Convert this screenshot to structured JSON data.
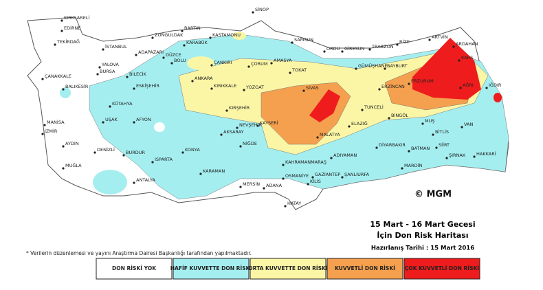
{
  "map": {
    "title_lines": [
      "15 Mart - 16 Mart Gecesi",
      "İçin Don Risk Haritası"
    ],
    "prepared_date": "Hazırlanış Tarihi : 15 Mart 2016",
    "copyright": "© MGM",
    "footnote": "* Verilerin düzenlemesi ve yayını Araştırma Dairesi Başkanlığı tarafından yapılmaktadır.",
    "legend": [
      {
        "label": "DON RİSKİ YOK",
        "color": "#ffffff"
      },
      {
        "label": "HAFİF KUVVETTE DON RİSKİ",
        "color": "#a4eef0"
      },
      {
        "label": "ORTA KUVVETTE DON RİSKİ",
        "color": "#fbf6a6"
      },
      {
        "label": "KUVVETLİ DON RİSKİ",
        "color": "#f4a04e"
      },
      {
        "label": "ÇOK KUVVETLİ DON RİSKİ",
        "color": "#ee1c1c"
      }
    ],
    "cities": [
      "KIRKLARELİ",
      "EDİRNE",
      "TEKİRDAĞ",
      "İSTANBUL",
      "ADAPAZARI",
      "DÜZCE",
      "BOLU",
      "YALOVA",
      "BURSA",
      "BİLECİK",
      "ÇANAKKALE",
      "BALIKESİR",
      "ESKİŞEHİR",
      "KÜTAHYA",
      "UŞAK",
      "AFYON",
      "MANİSA",
      "İZMİR",
      "AYDIN",
      "DENİZLİ",
      "MUĞLA",
      "BURDUR",
      "ISPARTA",
      "ANTALYA",
      "SİNOP",
      "BARTIN",
      "ZONGULDAK",
      "KARABÜK",
      "KASTAMONU",
      "ÇANKIRI",
      "ANKARA",
      "KIRIKKALE",
      "ÇORUM",
      "AMASYA",
      "SAMSUN",
      "TOKAT",
      "YOZGAT",
      "SİVAS",
      "KIRŞEHİR",
      "NEVŞEHİR",
      "KAYSERİ",
      "AKSARAY",
      "NİĞDE",
      "KONYA",
      "KARAMAN",
      "ORDU",
      "GİRESUN",
      "TRABZON",
      "RİZE",
      "ARTVİN",
      "ARDAHAN",
      "KARS",
      "GÜMÜŞHANE",
      "BAYBURT",
      "ERZURUM",
      "AĞRI",
      "IĞDIR",
      "ERZİNCAN",
      "TUNCELİ",
      "BİNGÖL",
      "MUŞ",
      "BİTLİS",
      "VAN",
      "ELAZIĞ",
      "MALATYA",
      "ADIYAMAN",
      "DİYARBAKIR",
      "BATMAN",
      "SİİRT",
      "ŞIRNAK",
      "HAKKARİ",
      "MARDİN",
      "ŞANLIURFA",
      "GAZİANTEP",
      "KAHRAMANMARAŞ",
      "OSMANİYE",
      "ADANA",
      "MERSİN",
      "KİLİS",
      "HATAY"
    ]
  }
}
